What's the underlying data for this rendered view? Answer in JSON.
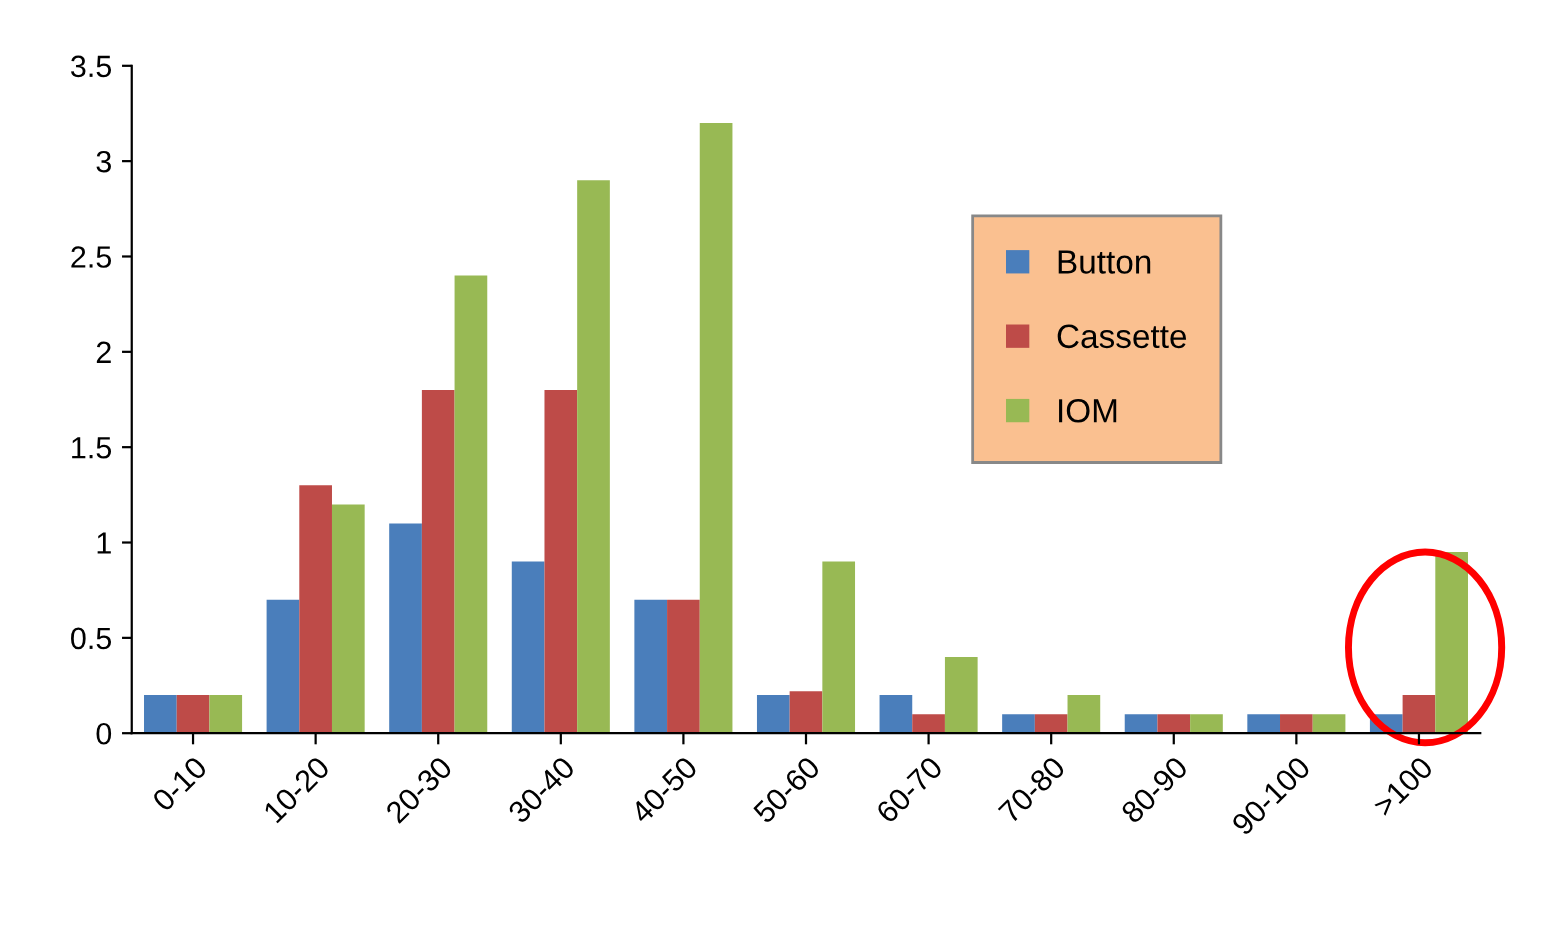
{
  "chart_data": {
    "type": "bar",
    "categories": [
      "0-10",
      "10-20",
      "20-30",
      "30-40",
      "40-50",
      "50-60",
      "60-70",
      "70-80",
      "80-90",
      "90-100",
      ">100"
    ],
    "series": [
      {
        "name": "Button",
        "color": "#4a7ebb",
        "values": [
          0.2,
          0.7,
          1.1,
          0.9,
          0.7,
          0.2,
          0.2,
          0.1,
          0.1,
          0.1,
          0.1
        ]
      },
      {
        "name": "Cassette",
        "color": "#be4b48",
        "values": [
          0.2,
          1.3,
          1.8,
          1.8,
          0.7,
          0.22,
          0.1,
          0.1,
          0.1,
          0.1,
          0.2
        ]
      },
      {
        "name": "IOM",
        "color": "#98b954",
        "values": [
          0.2,
          1.2,
          2.4,
          2.9,
          3.2,
          0.9,
          0.4,
          0.2,
          0.1,
          0.1,
          0.95
        ]
      }
    ],
    "ylim": [
      0,
      3.5
    ],
    "yticks": [
      0,
      {
        "value": 0.5,
        "label": "0.5"
      },
      1,
      {
        "value": 1.5,
        "label": "1.5"
      },
      2,
      {
        "value": 2.5,
        "label": "2.5"
      },
      3,
      {
        "value": 3.5,
        "label": "3.5"
      }
    ],
    "grid": false,
    "legend": "top right"
  }
}
